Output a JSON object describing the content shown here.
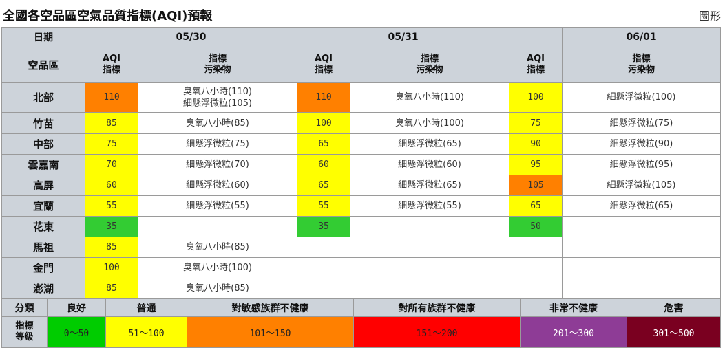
{
  "page": {
    "title": "全國各空品區空氣品質指標(AQI)預報",
    "graph_link": "圖形"
  },
  "table": {
    "date_label": "日期",
    "region_label": "空品區",
    "aqi_header_line1": "AQI",
    "aqi_header_line2": "指標",
    "pollutant_header_line1": "指標",
    "pollutant_header_line2": "污染物",
    "dates": [
      "05/30",
      "05/31",
      "06/01"
    ],
    "rows": [
      {
        "region": "北部",
        "days": [
          {
            "aqi": "110",
            "level": "o",
            "pollutant": [
              "臭氧八小時(110)",
              "細懸浮微粒(105)"
            ]
          },
          {
            "aqi": "110",
            "level": "o",
            "pollutant": [
              "臭氧八小時(110)"
            ]
          },
          {
            "aqi": "100",
            "level": "y",
            "pollutant": [
              "細懸浮微粒(100)"
            ]
          }
        ]
      },
      {
        "region": "竹苗",
        "days": [
          {
            "aqi": "85",
            "level": "y",
            "pollutant": [
              "臭氧八小時(85)"
            ]
          },
          {
            "aqi": "100",
            "level": "y",
            "pollutant": [
              "臭氧八小時(100)"
            ]
          },
          {
            "aqi": "75",
            "level": "y",
            "pollutant": [
              "細懸浮微粒(75)"
            ]
          }
        ]
      },
      {
        "region": "中部",
        "days": [
          {
            "aqi": "75",
            "level": "y",
            "pollutant": [
              "細懸浮微粒(75)"
            ]
          },
          {
            "aqi": "65",
            "level": "y",
            "pollutant": [
              "細懸浮微粒(65)"
            ]
          },
          {
            "aqi": "90",
            "level": "y",
            "pollutant": [
              "細懸浮微粒(90)"
            ]
          }
        ]
      },
      {
        "region": "雲嘉南",
        "days": [
          {
            "aqi": "70",
            "level": "y",
            "pollutant": [
              "細懸浮微粒(70)"
            ]
          },
          {
            "aqi": "60",
            "level": "y",
            "pollutant": [
              "細懸浮微粒(60)"
            ]
          },
          {
            "aqi": "95",
            "level": "y",
            "pollutant": [
              "細懸浮微粒(95)"
            ]
          }
        ]
      },
      {
        "region": "高屏",
        "days": [
          {
            "aqi": "60",
            "level": "y",
            "pollutant": [
              "細懸浮微粒(60)"
            ]
          },
          {
            "aqi": "65",
            "level": "y",
            "pollutant": [
              "細懸浮微粒(65)"
            ]
          },
          {
            "aqi": "105",
            "level": "o",
            "pollutant": [
              "細懸浮微粒(105)"
            ]
          }
        ]
      },
      {
        "region": "宜蘭",
        "days": [
          {
            "aqi": "55",
            "level": "y",
            "pollutant": [
              "細懸浮微粒(55)"
            ]
          },
          {
            "aqi": "55",
            "level": "y",
            "pollutant": [
              "細懸浮微粒(55)"
            ]
          },
          {
            "aqi": "65",
            "level": "y",
            "pollutant": [
              "細懸浮微粒(65)"
            ]
          }
        ]
      },
      {
        "region": "花東",
        "days": [
          {
            "aqi": "35",
            "level": "g",
            "pollutant": []
          },
          {
            "aqi": "35",
            "level": "g",
            "pollutant": []
          },
          {
            "aqi": "50",
            "level": "g",
            "pollutant": []
          }
        ]
      },
      {
        "region": "馬祖",
        "days": [
          {
            "aqi": "85",
            "level": "y",
            "pollutant": [
              "臭氧八小時(85)"
            ]
          },
          {
            "aqi": "",
            "level": "",
            "pollutant": []
          },
          {
            "aqi": "",
            "level": "",
            "pollutant": []
          }
        ]
      },
      {
        "region": "金門",
        "days": [
          {
            "aqi": "100",
            "level": "y",
            "pollutant": [
              "臭氧八小時(100)"
            ]
          },
          {
            "aqi": "",
            "level": "",
            "pollutant": []
          },
          {
            "aqi": "",
            "level": "",
            "pollutant": []
          }
        ]
      },
      {
        "region": "澎湖",
        "days": [
          {
            "aqi": "85",
            "level": "y",
            "pollutant": [
              "臭氧八小時(85)"
            ]
          },
          {
            "aqi": "",
            "level": "",
            "pollutant": []
          },
          {
            "aqi": "",
            "level": "",
            "pollutant": []
          }
        ]
      }
    ],
    "level_colors": {
      "g": "#33cc33",
      "y": "#ffff00",
      "o": "#ff8000"
    }
  },
  "legend": {
    "category_label": "分類",
    "index_label_line1": "指標",
    "index_label_line2": "等級",
    "levels": [
      {
        "name": "良好",
        "range": "0～50",
        "color": "#00cc00",
        "text_color": "#222222"
      },
      {
        "name": "普通",
        "range": "51～100",
        "color": "#ffff00",
        "text_color": "#222222"
      },
      {
        "name": "對敏感族群不健康",
        "range": "101～150",
        "color": "#ff8000",
        "text_color": "#222222"
      },
      {
        "name": "對所有族群不健康",
        "range": "151～200",
        "color": "#ff0000",
        "text_color": "#222222"
      },
      {
        "name": "非常不健康",
        "range": "201～300",
        "color": "#8e3c96",
        "text_color": "#ffffff"
      },
      {
        "name": "危害",
        "range": "301～500",
        "color": "#7a0020",
        "text_color": "#ffffff"
      }
    ]
  }
}
